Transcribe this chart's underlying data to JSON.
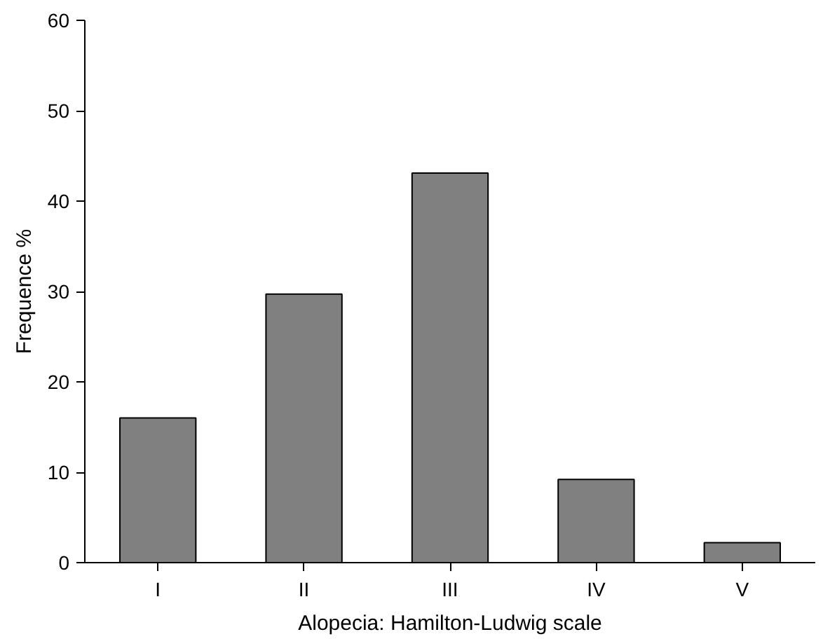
{
  "chart_data": {
    "type": "bar",
    "xlabel": "Alopecia: Hamilton-Ludwig scale",
    "ylabel": "Frequence %",
    "categories": [
      "I",
      "II",
      "III",
      "IV",
      "V"
    ],
    "values": [
      16,
      29.7,
      43.1,
      9.2,
      2.2
    ],
    "color": "#808080",
    "ylim": [
      0,
      60
    ],
    "yticks": [
      0,
      10,
      20,
      30,
      40,
      50,
      60
    ],
    "grid": false
  }
}
